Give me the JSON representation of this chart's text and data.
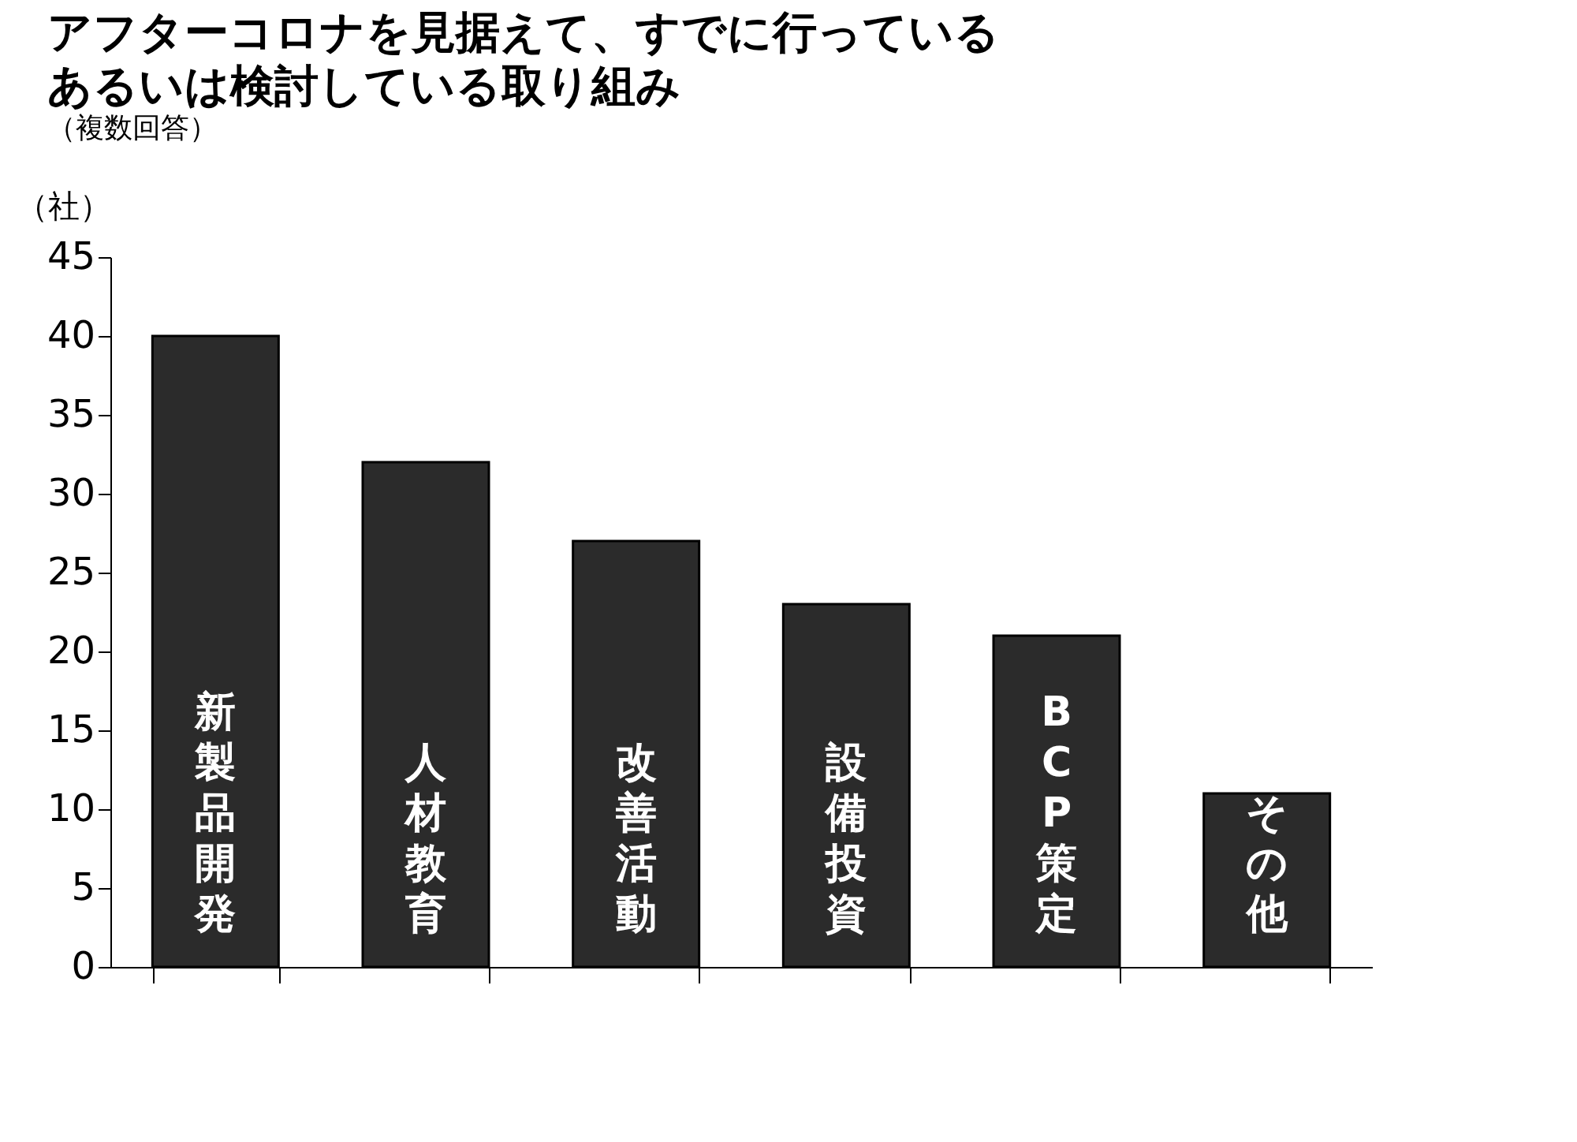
{
  "chart_data": {
    "type": "bar",
    "title": [
      "アフターコロナを見据えて、すでに行っている",
      "あるいは検討している取り組み"
    ],
    "subtitle": "（複数回答）",
    "ylabel": "（社）",
    "categories": [
      "新製品開発",
      "人材教育",
      "改善活動",
      "設備投資",
      "BCP策定",
      "その他"
    ],
    "values": [
      40,
      32,
      27,
      23,
      21,
      11
    ],
    "color": "#2b2b2b",
    "ylim": [
      0,
      45
    ],
    "yticks": [
      0,
      5,
      10,
      15,
      20,
      25,
      30,
      35,
      40,
      45
    ],
    "grid": false
  }
}
